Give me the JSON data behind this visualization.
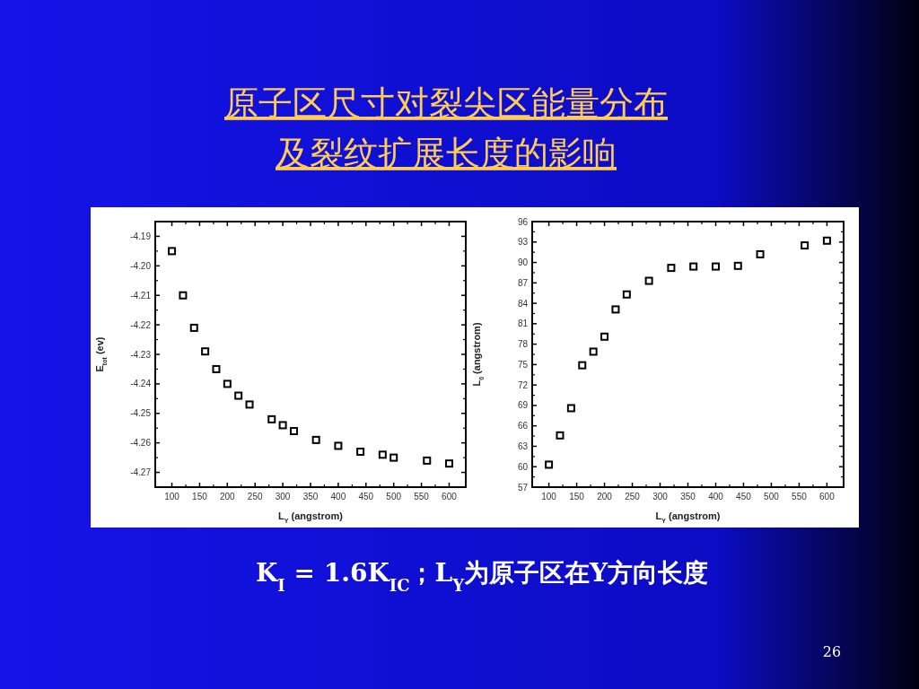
{
  "chart_data": [
    {
      "type": "scatter",
      "title": "原子区尺寸对裂尖区能量分布及裂纹扩展长度的影响",
      "xlabel": "L$_{Y}$ (angstrom)",
      "ylabel": "E$_{tot}$ (ev)",
      "x": [
        100,
        120,
        140,
        160,
        180,
        200,
        220,
        240,
        280,
        300,
        320,
        360,
        400,
        440,
        480,
        500,
        560,
        600
      ],
      "values": [
        -4.195,
        -4.21,
        -4.221,
        -4.229,
        -4.235,
        -4.24,
        -4.244,
        -4.247,
        -4.252,
        -4.254,
        -4.256,
        -4.259,
        -4.261,
        -4.263,
        -4.264,
        -4.265,
        -4.266,
        -4.267
      ],
      "color": "#000000",
      "marker": "square",
      "grid": false,
      "xlim": [
        70,
        630
      ],
      "ylim": [
        -4.275,
        -4.185
      ],
      "xticks": [
        100,
        150,
        200,
        250,
        300,
        350,
        400,
        450,
        500,
        550,
        600
      ],
      "yticks": [
        -4.19,
        {
          "value": -4.2,
          "label": "-4.20"
        },
        -4.21,
        -4.22,
        -4.23,
        -4.24,
        -4.25,
        -4.26,
        -4.27
      ],
      "annotations": [
        "K$_{I}$ = 1.6K$_{IC}$；L$_{Y}$为原子区在Y方向长度",
        "26"
      ]
    },
    {
      "type": "scatter",
      "xlabel": "L$_{Y}$ (angstrom)",
      "ylabel": "L$_{0}$ (angstrom)",
      "x": [
        100,
        120,
        140,
        160,
        180,
        200,
        220,
        240,
        280,
        320,
        360,
        400,
        440,
        480,
        560,
        600
      ],
      "values": [
        60.3,
        64.6,
        68.6,
        74.9,
        76.9,
        79.1,
        83.1,
        85.3,
        87.3,
        89.2,
        89.4,
        89.4,
        89.5,
        91.2,
        92.5,
        93.2
      ],
      "color": "#000000",
      "marker": "square",
      "grid": false,
      "xlim": [
        70,
        630
      ],
      "ylim": [
        57,
        96
      ],
      "xticks": [
        100,
        150,
        200,
        250,
        300,
        350,
        400,
        450,
        500,
        550,
        600
      ],
      "yticks": [
        57,
        60,
        63,
        66,
        69,
        72,
        75,
        78,
        81,
        84,
        87,
        90,
        93,
        96
      ]
    }
  ]
}
